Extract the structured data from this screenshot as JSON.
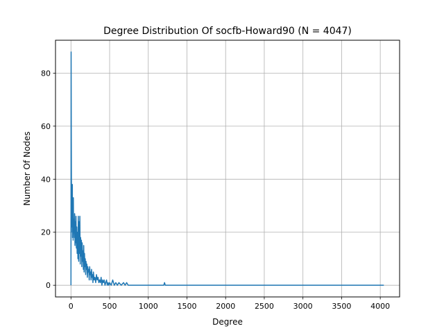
{
  "chart_data": {
    "type": "line",
    "title": "Degree Distribution Of socfb-Howard90 (N = 4047)",
    "xlabel": "Degree",
    "ylabel": "Number Of Nodes",
    "xlim": [
      -200,
      4250
    ],
    "ylim": [
      -4.4,
      92.4
    ],
    "xticks": [
      0,
      500,
      1000,
      1500,
      2000,
      2500,
      3000,
      3500,
      4000
    ],
    "xtick_labels": [
      "0",
      "500",
      "1000",
      "1500",
      "2000",
      "2500",
      "3000",
      "3500",
      "4000"
    ],
    "yticks": [
      0,
      20,
      40,
      60,
      80
    ],
    "ytick_labels": [
      "0",
      "20",
      "40",
      "60",
      "80"
    ],
    "grid": true,
    "legend": "none",
    "color": "#1f77b4",
    "series": [
      {
        "x": [
          0,
          2,
          4,
          6,
          8,
          10,
          12,
          14,
          16,
          18,
          20,
          22,
          25,
          28,
          31,
          34,
          37,
          40,
          44,
          48,
          52,
          56,
          60,
          65,
          70,
          75,
          80,
          85,
          90,
          95,
          100,
          105,
          110,
          115,
          120,
          125,
          130,
          135,
          140,
          145,
          150,
          155,
          160,
          165,
          170,
          175,
          180,
          185,
          190,
          195,
          200,
          206,
          212,
          218,
          224,
          230,
          236,
          242,
          248,
          254,
          260,
          266,
          272,
          278,
          284,
          290,
          300,
          310,
          320,
          330,
          340,
          350,
          360,
          370,
          380,
          390,
          400,
          410,
          420,
          430,
          440,
          450,
          460,
          470,
          480,
          490,
          500,
          520,
          540,
          560,
          580,
          600,
          620,
          650,
          680,
          700,
          720,
          740,
          800,
          900,
          1000,
          1100,
          1200,
          1210,
          1220,
          1300,
          1500,
          2000,
          2500,
          3000,
          3500,
          4046
        ],
        "y": [
          0,
          88,
          60,
          40,
          28,
          35,
          22,
          30,
          20,
          38,
          18,
          26,
          32,
          17,
          33,
          20,
          25,
          22,
          18,
          27,
          15,
          24,
          16,
          26,
          14,
          22,
          12,
          20,
          10,
          26,
          9,
          24,
          12,
          26,
          8,
          18,
          11,
          17,
          7,
          16,
          9,
          13,
          6,
          15,
          5,
          12,
          7,
          10,
          4,
          9,
          6,
          8,
          3,
          7,
          5,
          6,
          2,
          7,
          4,
          5,
          2,
          6,
          3,
          4,
          1,
          5,
          2,
          3,
          1,
          4,
          2,
          3,
          1,
          2,
          1,
          3,
          0,
          2,
          1,
          2,
          0,
          1,
          2,
          0,
          1,
          0,
          1,
          0,
          2,
          0,
          1,
          0,
          1,
          0,
          1,
          0,
          1,
          0,
          0,
          0,
          0,
          0,
          0,
          1,
          0,
          0,
          0,
          0,
          0,
          0,
          0,
          0
        ]
      }
    ]
  }
}
